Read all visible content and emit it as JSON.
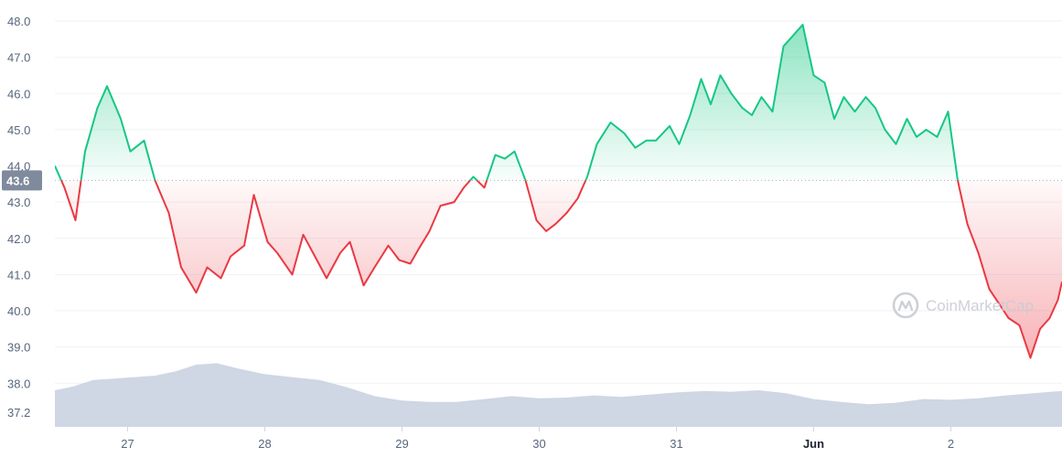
{
  "chart_data": {
    "type": "line",
    "y_axis": {
      "ticks": [
        "48.0",
        "47.0",
        "46.0",
        "45.0",
        "44.0",
        "43.0",
        "42.0",
        "41.0",
        "40.0",
        "39.0",
        "38.0",
        "37.2"
      ],
      "tick_values": [
        48.0,
        47.0,
        46.0,
        45.0,
        44.0,
        43.0,
        42.0,
        41.0,
        40.0,
        39.0,
        38.0,
        37.2
      ]
    },
    "x_axis": {
      "ticks": [
        "27",
        "28",
        "29",
        "30",
        "31",
        "Jun",
        "2"
      ],
      "tick_x": [
        0.6,
        1.6,
        2.6,
        3.6,
        4.6,
        5.6,
        6.6
      ],
      "bold_ticks": [
        "Jun"
      ],
      "range": [
        0.07,
        7.41
      ]
    },
    "reference_line": {
      "value": 43.6,
      "label": "43.6"
    },
    "colors": {
      "up": "#16c784",
      "down": "#ea3943",
      "volume": "#cfd6e4",
      "reference_label_bg": "#808a9d",
      "grid": "#eff2f5"
    },
    "price": {
      "x": [
        0.07,
        0.14,
        0.22,
        0.29,
        0.38,
        0.45,
        0.55,
        0.62,
        0.72,
        0.8,
        0.9,
        0.99,
        1.1,
        1.18,
        1.28,
        1.35,
        1.45,
        1.52,
        1.62,
        1.69,
        1.8,
        1.88,
        1.98,
        2.05,
        2.15,
        2.22,
        2.32,
        2.4,
        2.5,
        2.58,
        2.66,
        2.72,
        2.8,
        2.88,
        2.98,
        3.05,
        3.12,
        3.2,
        3.28,
        3.35,
        3.42,
        3.5,
        3.58,
        3.65,
        3.72,
        3.8,
        3.88,
        3.95,
        4.02,
        4.12,
        4.22,
        4.3,
        4.38,
        4.45,
        4.55,
        4.62,
        4.7,
        4.78,
        4.85,
        4.92,
        5.0,
        5.08,
        5.15,
        5.22,
        5.3,
        5.38,
        5.45,
        5.52,
        5.6,
        5.68,
        5.75,
        5.82,
        5.9,
        5.98,
        6.05,
        6.12,
        6.2,
        6.28,
        6.35,
        6.42,
        6.5,
        6.58,
        6.65,
        6.72,
        6.8,
        6.88,
        6.95,
        7.02,
        7.1,
        7.18,
        7.25,
        7.32,
        7.38,
        7.41
      ],
      "y": [
        44.0,
        43.4,
        42.5,
        44.4,
        45.6,
        46.2,
        45.3,
        44.4,
        44.7,
        43.6,
        42.7,
        41.2,
        40.5,
        41.2,
        40.9,
        41.5,
        41.8,
        43.2,
        41.9,
        41.6,
        41.0,
        42.1,
        41.4,
        40.9,
        41.6,
        41.9,
        40.7,
        41.2,
        41.8,
        41.4,
        41.3,
        41.7,
        42.2,
        42.9,
        43.0,
        43.4,
        43.7,
        43.4,
        44.3,
        44.2,
        44.4,
        43.6,
        42.5,
        42.2,
        42.4,
        42.7,
        43.1,
        43.7,
        44.6,
        45.2,
        44.9,
        44.5,
        44.7,
        44.7,
        45.1,
        44.6,
        45.4,
        46.4,
        45.7,
        46.5,
        46.0,
        45.6,
        45.4,
        45.9,
        45.5,
        47.3,
        47.6,
        47.9,
        46.5,
        46.3,
        45.3,
        45.9,
        45.5,
        45.9,
        45.6,
        45.0,
        44.6,
        45.3,
        44.8,
        45.0,
        44.8,
        45.5,
        43.6,
        42.4,
        41.6,
        40.6,
        40.2,
        39.8,
        39.6,
        38.7,
        39.5,
        39.8,
        40.3,
        40.8
      ]
    },
    "volume": {
      "x": [
        0.07,
        0.2,
        0.35,
        0.5,
        0.65,
        0.8,
        0.95,
        1.1,
        1.25,
        1.4,
        1.6,
        1.8,
        2.0,
        2.2,
        2.4,
        2.6,
        2.8,
        3.0,
        3.2,
        3.4,
        3.6,
        3.8,
        4.0,
        4.2,
        4.4,
        4.6,
        4.8,
        5.0,
        5.2,
        5.4,
        5.6,
        5.8,
        6.0,
        6.2,
        6.4,
        6.6,
        6.8,
        7.0,
        7.2,
        7.41
      ],
      "relative": [
        0.5,
        0.55,
        0.64,
        0.66,
        0.68,
        0.7,
        0.76,
        0.85,
        0.87,
        0.8,
        0.72,
        0.68,
        0.64,
        0.54,
        0.42,
        0.36,
        0.34,
        0.34,
        0.38,
        0.42,
        0.39,
        0.4,
        0.43,
        0.41,
        0.44,
        0.47,
        0.49,
        0.48,
        0.5,
        0.46,
        0.38,
        0.34,
        0.31,
        0.33,
        0.38,
        0.37,
        0.39,
        0.43,
        0.46,
        0.49
      ]
    }
  },
  "watermark": {
    "text": "CoinMarketCap"
  }
}
